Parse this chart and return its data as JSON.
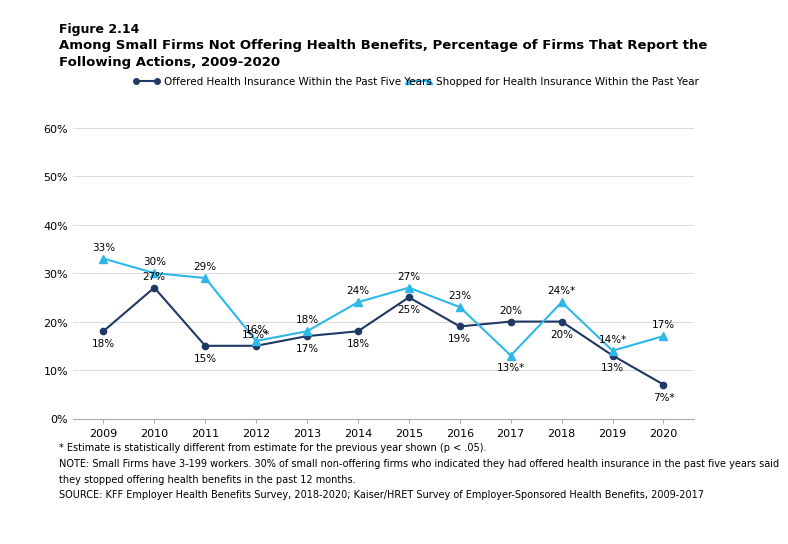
{
  "years": [
    2009,
    2010,
    2011,
    2012,
    2013,
    2014,
    2015,
    2016,
    2017,
    2018,
    2019,
    2020
  ],
  "offered": [
    18,
    27,
    15,
    15,
    17,
    18,
    25,
    19,
    20,
    20,
    13,
    7
  ],
  "offered_labels": [
    "18%",
    "27%",
    "15%",
    "15%*",
    "17%",
    "18%",
    "25%",
    "19%",
    "20%",
    "20%",
    "13%",
    "7%*"
  ],
  "shopped": [
    33,
    30,
    29,
    16,
    18,
    24,
    27,
    23,
    13,
    24,
    14,
    17
  ],
  "shopped_labels": [
    "33%",
    "30%",
    "29%",
    "16%",
    "18%",
    "24%",
    "27%",
    "23%",
    "13%*",
    "24%*",
    "14%*",
    "17%"
  ],
  "offered_color": "#1f3864",
  "shopped_color": "#2db8e8",
  "ylim": [
    0,
    65
  ],
  "yticks": [
    0,
    10,
    20,
    30,
    40,
    50,
    60
  ],
  "ytick_labels": [
    "0%",
    "10%",
    "20%",
    "30%",
    "40%",
    "50%",
    "60%"
  ],
  "title_line1": "Figure 2.14",
  "title_line2": "Among Small Firms Not Offering Health Benefits, Percentage of Firms That Report the",
  "title_line3": "Following Actions, 2009-2020",
  "legend_offered": "Offered Health Insurance Within the Past Five Years",
  "legend_shopped": "Shopped for Health Insurance Within the Past Year",
  "footnote1": "* Estimate is statistically different from estimate for the previous year shown (p < .05).",
  "footnote2": "NOTE: Small Firms have 3-199 workers. 30% of small non-offering firms who indicated they had offered health insurance in the past five years said",
  "footnote3": "they stopped offering health benefits in the past 12 months.",
  "footnote4": "SOURCE: KFF Employer Health Benefits Survey, 2018-2020; Kaiser/HRET Survey of Employer-Sponsored Health Benefits, 2009-2017",
  "background_color": "#ffffff",
  "offered_label_va": [
    "top",
    "bottom",
    "top",
    "bottom",
    "top",
    "top",
    "top",
    "top",
    "bottom",
    "top",
    "top",
    "top"
  ],
  "offered_label_dy": [
    -5,
    5,
    -5,
    5,
    -5,
    -5,
    -5,
    -5,
    5,
    -5,
    -5,
    -5
  ],
  "shopped_label_va": [
    "bottom",
    "bottom",
    "bottom",
    "bottom",
    "bottom",
    "bottom",
    "bottom",
    "bottom",
    "top",
    "bottom",
    "bottom",
    "bottom"
  ],
  "shopped_label_dy": [
    5,
    5,
    5,
    5,
    5,
    5,
    5,
    5,
    -5,
    5,
    5,
    5
  ]
}
